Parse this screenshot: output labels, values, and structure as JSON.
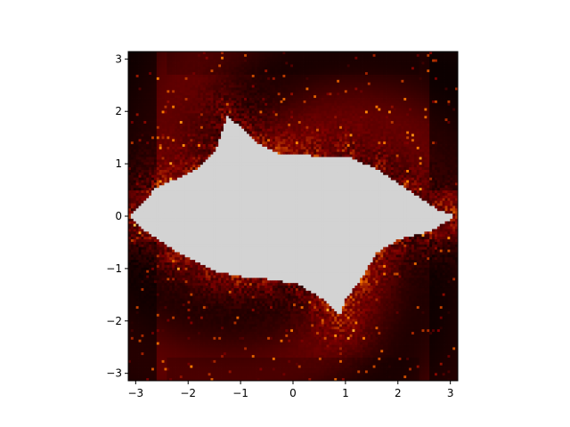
{
  "chart_data": {
    "type": "heatmap",
    "title": "",
    "xlabel": "",
    "ylabel": "",
    "xlim": [
      -3.14159,
      3.14159
    ],
    "ylim": [
      -3.14159,
      3.14159
    ],
    "x_ticks": [
      -3,
      -2,
      -1,
      0,
      1,
      2,
      3
    ],
    "y_ticks": [
      -3,
      -2,
      -1,
      0,
      1,
      2,
      3
    ],
    "x_tick_labels": [
      "−3",
      "−2",
      "−1",
      "0",
      "1",
      "2",
      "3"
    ],
    "y_tick_labels": [
      "−3",
      "−2",
      "−1",
      "0",
      "1",
      "2",
      "3"
    ],
    "grid": false,
    "colormap": "afmhot",
    "masked_region_color": "#d3d3d3",
    "masked_region_shape": {
      "description_points": [
        [
          -3.1,
          0.0
        ],
        [
          -2.6,
          0.55
        ],
        [
          -1.8,
          0.9
        ],
        [
          -1.5,
          1.2
        ],
        [
          -1.25,
          1.9
        ],
        [
          -1.0,
          1.7
        ],
        [
          -0.7,
          1.4
        ],
        [
          -0.3,
          1.2
        ],
        [
          0.4,
          1.15
        ],
        [
          1.0,
          1.15
        ],
        [
          1.6,
          0.9
        ],
        [
          2.2,
          0.5
        ],
        [
          2.8,
          0.1
        ],
        [
          3.1,
          0.0
        ],
        [
          2.6,
          -0.3
        ],
        [
          2.0,
          -0.45
        ],
        [
          1.6,
          -0.7
        ],
        [
          1.3,
          -1.2
        ],
        [
          1.0,
          -1.6
        ],
        [
          0.9,
          -1.9
        ],
        [
          0.6,
          -1.6
        ],
        [
          0.1,
          -1.3
        ],
        [
          -0.5,
          -1.2
        ],
        [
          -1.0,
          -1.15
        ],
        [
          -1.5,
          -1.05
        ],
        [
          -2.2,
          -0.7
        ],
        [
          -2.8,
          -0.3
        ]
      ]
    },
    "grid_resolution": [
      128,
      128
    ]
  },
  "colors": {
    "background": "#ffffff",
    "axis": "#000000",
    "masked": "#d3d3d3"
  }
}
